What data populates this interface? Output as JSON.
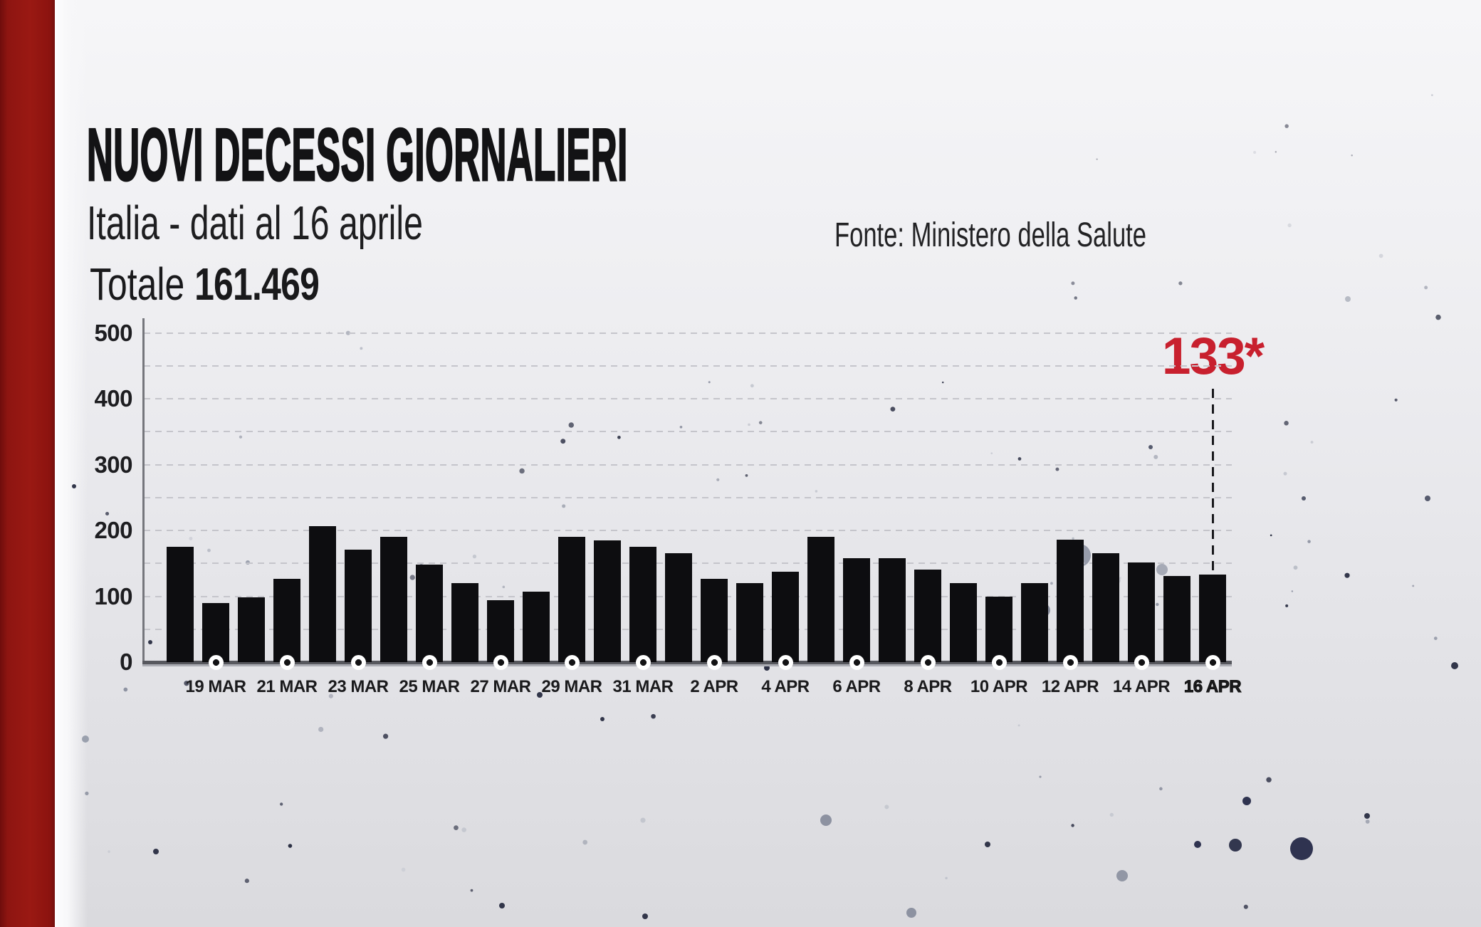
{
  "header": {
    "title": "NUOVI DECESSI GIORNALIERI",
    "subtitle": "Italia - dati al 16 aprile",
    "source": "Fonte: Ministero della Salute",
    "total_label": "Totale",
    "total_value": "161.469"
  },
  "chart_data": {
    "type": "bar",
    "title": "NUOVI DECESSI GIORNALIERI",
    "subtitle": "Italia - dati al 16 aprile",
    "categories": [
      "18 MAR",
      "19 MAR",
      "20 MAR",
      "21 MAR",
      "22 MAR",
      "23 MAR",
      "24 MAR",
      "25 MAR",
      "26 MAR",
      "27 MAR",
      "28 MAR",
      "29 MAR",
      "30 MAR",
      "31 MAR",
      "1 APR",
      "2 APR",
      "3 APR",
      "4 APR",
      "5 APR",
      "6 APR",
      "7 APR",
      "8 APR",
      "9 APR",
      "10 APR",
      "11 APR",
      "12 APR",
      "13 APR",
      "14 APR",
      "15 APR",
      "16 APR"
    ],
    "values": [
      175,
      90,
      98,
      127,
      207,
      171,
      190,
      148,
      120,
      94,
      107,
      190,
      185,
      175,
      165,
      126,
      120,
      137,
      190,
      158,
      158,
      140,
      120,
      99,
      120,
      186,
      165,
      151,
      131,
      133
    ],
    "x_tick_labels": [
      "19 MAR",
      "21 MAR",
      "23 MAR",
      "25 MAR",
      "27 MAR",
      "29 MAR",
      "31 MAR",
      "2 APR",
      "4 APR",
      "6 APR",
      "8 APR",
      "10 APR",
      "12 APR",
      "14 APR",
      "16 APR"
    ],
    "x_tick_start_index": 1,
    "x_tick_step": 2,
    "ylim": [
      0,
      500
    ],
    "y_ticks": [
      0,
      100,
      200,
      300,
      400,
      500
    ],
    "grid_step": 50,
    "grid_style": "dashed",
    "legend": "none",
    "bar_color": "#0d0d10",
    "annotation": {
      "label": "133*",
      "value": 133,
      "category": "16 APR",
      "color": "#c8202e"
    }
  },
  "colors": {
    "accent_stripe": "#941712",
    "annotation_red": "#c8202e",
    "bar": "#0d0d10",
    "background": "#e4e4e8"
  }
}
